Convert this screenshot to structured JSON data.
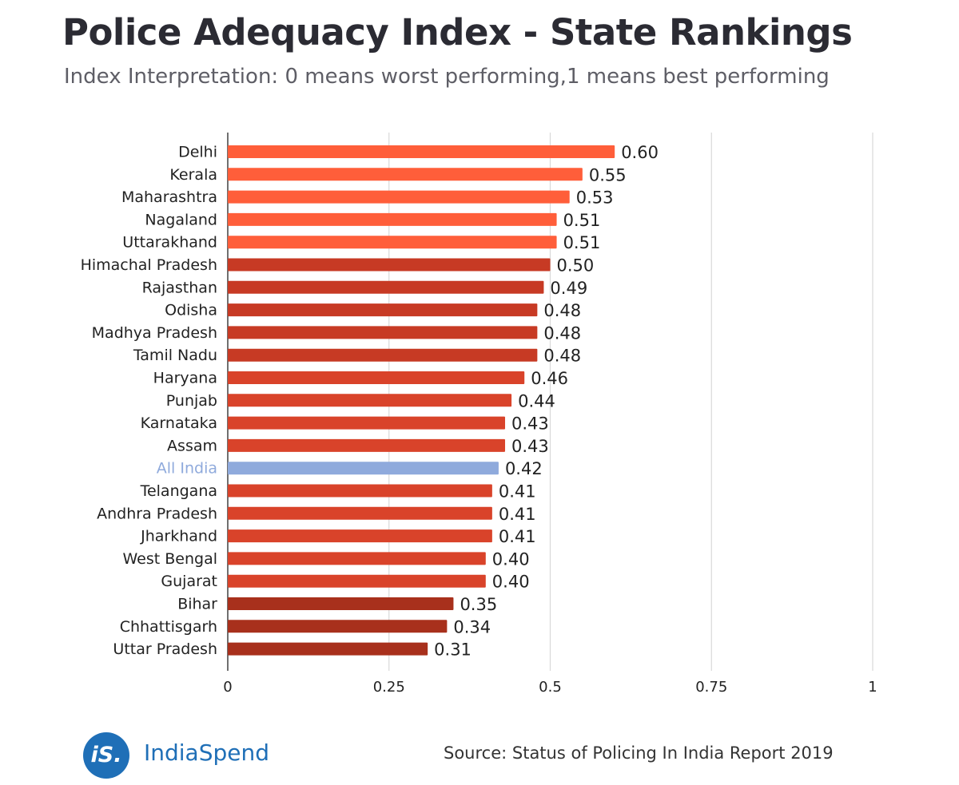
{
  "chart_data": {
    "type": "bar",
    "orientation": "horizontal",
    "title": "Police Adequacy Index - State Rankings",
    "subtitle": "Index Interpretation: 0 means worst performing,1 means best performing",
    "xlabel": "",
    "ylabel": "",
    "xlim": [
      0,
      1
    ],
    "xticks": [
      0,
      0.25,
      0.5,
      0.75,
      1
    ],
    "xtick_labels": [
      "0",
      "0.25",
      "0.5",
      "0.75",
      "1"
    ],
    "grid": "vertical",
    "categories": [
      "Delhi",
      "Kerala",
      "Maharashtra",
      "Nagaland",
      "Uttarakhand",
      "Himachal Pradesh",
      "Rajasthan",
      "Odisha",
      "Madhya Pradesh",
      "Tamil Nadu",
      "Haryana",
      "Punjab",
      "Karnataka",
      "Assam",
      "All India",
      "Telangana",
      "Andhra Pradesh",
      "Jharkhand",
      "West Bengal",
      "Gujarat",
      "Bihar",
      "Chhattisgarh",
      "Uttar Pradesh"
    ],
    "values": [
      0.6,
      0.55,
      0.53,
      0.51,
      0.51,
      0.5,
      0.49,
      0.48,
      0.48,
      0.48,
      0.46,
      0.44,
      0.43,
      0.43,
      0.42,
      0.41,
      0.41,
      0.41,
      0.4,
      0.4,
      0.35,
      0.34,
      0.31
    ],
    "value_labels": [
      "0.60",
      "0.55",
      "0.53",
      "0.51",
      "0.51",
      "0.50",
      "0.49",
      "0.48",
      "0.48",
      "0.48",
      "0.46",
      "0.44",
      "0.43",
      "0.43",
      "0.42",
      "0.41",
      "0.41",
      "0.41",
      "0.40",
      "0.40",
      "0.35",
      "0.34",
      "0.31"
    ],
    "bar_colors": [
      "#ff5e3a",
      "#ff5e3a",
      "#ff5e3a",
      "#ff5e3a",
      "#ff5e3a",
      "#c73a24",
      "#c73a24",
      "#c73a24",
      "#c73a24",
      "#c73a24",
      "#d9432a",
      "#d9432a",
      "#d9432a",
      "#d9432a",
      "#8faadc",
      "#d9432a",
      "#d9432a",
      "#d9432a",
      "#d9432a",
      "#d9432a",
      "#a8301c",
      "#a8301c",
      "#a8301c"
    ],
    "highlight_category": "All India",
    "highlight_label_color": "#8faadc",
    "label_color": "#222222"
  },
  "footer": {
    "logo_mark": "iS.",
    "logo_text": "IndiaSpend",
    "source": "Source: Status of Policing In India Report 2019"
  },
  "colors": {
    "brand": "#1f6fb7",
    "title": "#2b2b33",
    "subtitle": "#5e5e66",
    "grid": "#d9d9d9",
    "axis": "#333333"
  }
}
